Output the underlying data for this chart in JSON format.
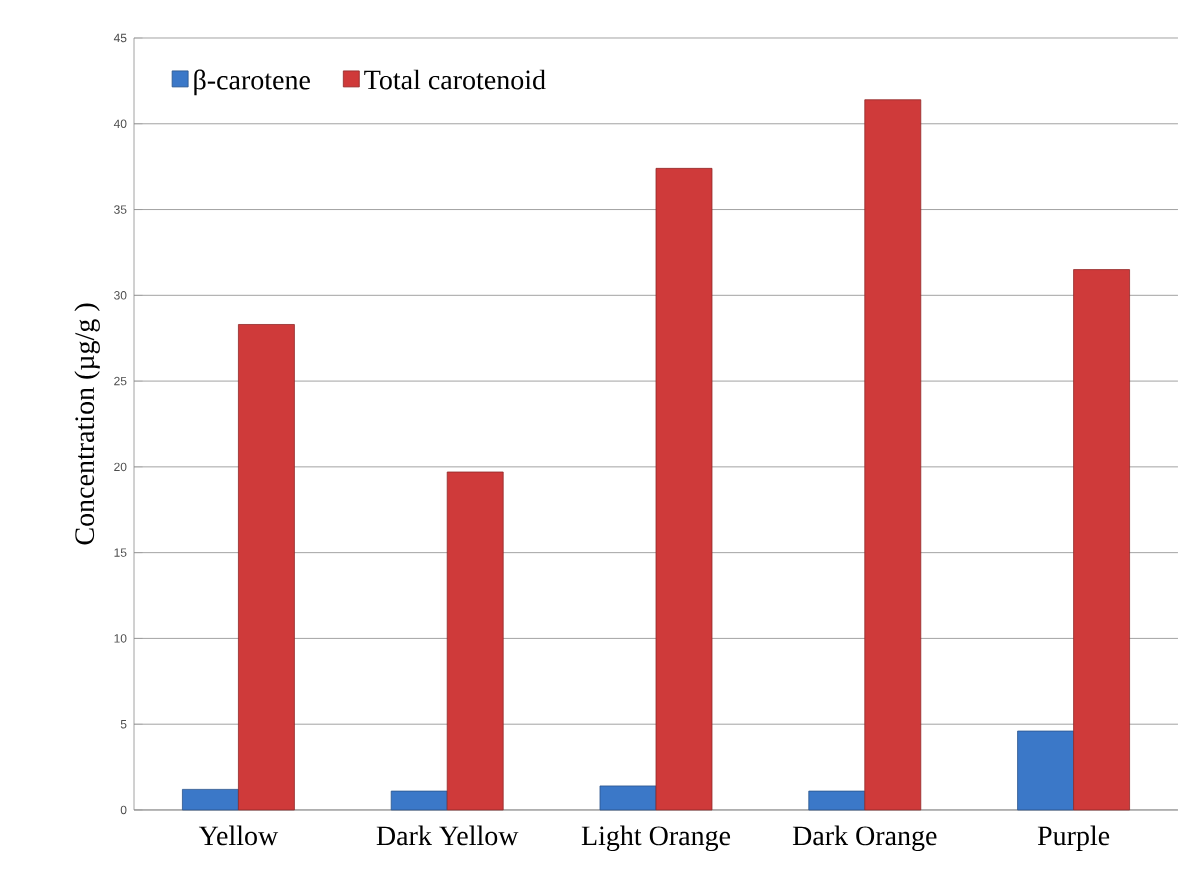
{
  "chart_data": {
    "type": "bar",
    "ylabel": "Concentration (µg/g )",
    "categories": [
      "Yellow",
      "Dark Yellow",
      "Light Orange",
      "Dark Orange",
      "Purple"
    ],
    "series": [
      {
        "name": "β-carotene",
        "color": "#3b78c8",
        "values": [
          1.2,
          1.1,
          1.4,
          1.1,
          4.6
        ]
      },
      {
        "name": "Total carotenoid",
        "color": "#cf3a3a",
        "values": [
          28.3,
          19.7,
          37.4,
          41.4,
          31.5
        ]
      }
    ],
    "ylim": [
      0,
      45
    ],
    "yticks": [
      0,
      5,
      10,
      15,
      20,
      25,
      30,
      35,
      40,
      45
    ],
    "grid": "y",
    "legend": "top left"
  }
}
